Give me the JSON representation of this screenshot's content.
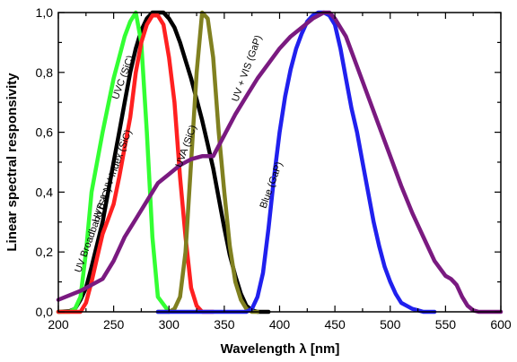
{
  "chart_data": {
    "type": "line",
    "xlabel": "Wavelength λ [nm]",
    "ylabel": "Linear spectral responsivity",
    "xlim": [
      200,
      600
    ],
    "ylim": [
      0,
      1.0
    ],
    "x_ticks": [
      "200",
      "250",
      "300",
      "350",
      "400",
      "450",
      "500",
      "550",
      "600"
    ],
    "y_ticks": [
      "0,0",
      "0,2",
      "0,4",
      "0,6",
      "0,8",
      "1,0"
    ],
    "grid": false,
    "legend": "none",
    "series": [
      {
        "name": "UV Broadband (SiC)",
        "color": "#000000",
        "x": [
          200,
          210,
          215,
          220,
          225,
          230,
          240,
          250,
          255,
          260,
          265,
          270,
          275,
          280,
          285,
          290,
          295,
          300,
          305,
          310,
          315,
          320,
          325,
          330,
          335,
          340,
          345,
          350,
          355,
          360,
          365,
          370,
          375,
          380,
          390
        ],
        "y": [
          0,
          0.002,
          0.01,
          0.04,
          0.08,
          0.15,
          0.3,
          0.5,
          0.6,
          0.7,
          0.8,
          0.88,
          0.94,
          0.98,
          1.0,
          1.0,
          1.0,
          0.98,
          0.95,
          0.9,
          0.84,
          0.78,
          0.71,
          0.64,
          0.56,
          0.48,
          0.38,
          0.28,
          0.19,
          0.12,
          0.06,
          0.02,
          0.005,
          0,
          0
        ]
      },
      {
        "name": "UVC (SiC)",
        "color": "#33ff33",
        "x": [
          200,
          210,
          215,
          220,
          225,
          230,
          240,
          250,
          255,
          260,
          265,
          270,
          275,
          280,
          285,
          290,
          300
        ],
        "y": [
          0,
          0,
          0.01,
          0.05,
          0.2,
          0.4,
          0.6,
          0.78,
          0.85,
          0.92,
          0.97,
          1.0,
          0.9,
          0.6,
          0.25,
          0.05,
          0
        ]
      },
      {
        "name": "UVB & UV Index (SiC)",
        "color": "#ff2020",
        "x": [
          200,
          220,
          225,
          230,
          235,
          240,
          245,
          250,
          255,
          260,
          265,
          270,
          275,
          280,
          285,
          290,
          295,
          300,
          305,
          310,
          315,
          320,
          325,
          330,
          340
        ],
        "y": [
          0,
          0,
          0.03,
          0.1,
          0.18,
          0.26,
          0.31,
          0.36,
          0.45,
          0.55,
          0.65,
          0.8,
          0.9,
          0.96,
          0.99,
          0.99,
          0.96,
          0.85,
          0.7,
          0.45,
          0.25,
          0.08,
          0.02,
          0,
          0
        ]
      },
      {
        "name": "UVA (SiC)",
        "color": "#808020",
        "x": [
          290,
          300,
          305,
          310,
          315,
          320,
          325,
          330,
          335,
          340,
          345,
          350,
          355,
          360,
          365,
          370,
          375,
          380
        ],
        "y": [
          0,
          0,
          0.01,
          0.05,
          0.2,
          0.5,
          0.8,
          1.0,
          0.98,
          0.85,
          0.6,
          0.4,
          0.22,
          0.1,
          0.04,
          0.01,
          0,
          0
        ]
      },
      {
        "name": "Blue (GaP)",
        "color": "#2020ee",
        "x": [
          290,
          370,
          375,
          380,
          385,
          390,
          395,
          400,
          405,
          410,
          415,
          420,
          425,
          430,
          435,
          440,
          445,
          450,
          455,
          460,
          465,
          470,
          475,
          480,
          485,
          490,
          495,
          500,
          505,
          510,
          515,
          520,
          525,
          530,
          540
        ],
        "y": [
          0,
          0,
          0.01,
          0.05,
          0.13,
          0.28,
          0.45,
          0.6,
          0.72,
          0.81,
          0.88,
          0.93,
          0.97,
          0.99,
          1.0,
          1.0,
          0.99,
          0.96,
          0.88,
          0.78,
          0.68,
          0.6,
          0.5,
          0.4,
          0.3,
          0.22,
          0.15,
          0.1,
          0.06,
          0.03,
          0.02,
          0.01,
          0.005,
          0,
          0
        ]
      },
      {
        "name": "UV + VIS (GaP)",
        "color": "#7a1a80",
        "x": [
          200,
          220,
          240,
          250,
          260,
          270,
          280,
          290,
          300,
          310,
          320,
          330,
          340,
          350,
          360,
          370,
          380,
          390,
          400,
          410,
          420,
          430,
          440,
          445,
          450,
          460,
          470,
          480,
          490,
          500,
          510,
          520,
          530,
          540,
          550,
          555,
          560,
          565,
          570,
          575,
          580,
          590,
          600
        ],
        "y": [
          0.04,
          0.07,
          0.11,
          0.17,
          0.25,
          0.31,
          0.37,
          0.43,
          0.46,
          0.49,
          0.51,
          0.52,
          0.52,
          0.59,
          0.66,
          0.72,
          0.78,
          0.83,
          0.88,
          0.92,
          0.95,
          0.98,
          1.0,
          1.0,
          0.98,
          0.92,
          0.82,
          0.72,
          0.62,
          0.52,
          0.42,
          0.33,
          0.25,
          0.17,
          0.12,
          0.11,
          0.09,
          0.05,
          0.02,
          0.005,
          0,
          0,
          0
        ]
      }
    ]
  },
  "annotations": [
    {
      "series_index": 0,
      "text": "UV Broadband (SiC)",
      "at_x": 234,
      "at_y": 0.27
    },
    {
      "series_index": 1,
      "text": "UVC (SiC)",
      "at_x": 261,
      "at_y": 0.78
    },
    {
      "series_index": 2,
      "text": "UVB & UV Index (SiC)",
      "at_x": 251,
      "at_y": 0.45
    },
    {
      "series_index": 3,
      "text": "UVA (SiC)",
      "at_x": 318,
      "at_y": 0.55
    },
    {
      "series_index": 4,
      "text": "Blue (GaP)",
      "at_x": 395,
      "at_y": 0.42
    },
    {
      "series_index": 5,
      "text": "UV + VIS (GaP)",
      "at_x": 373,
      "at_y": 0.81
    }
  ]
}
